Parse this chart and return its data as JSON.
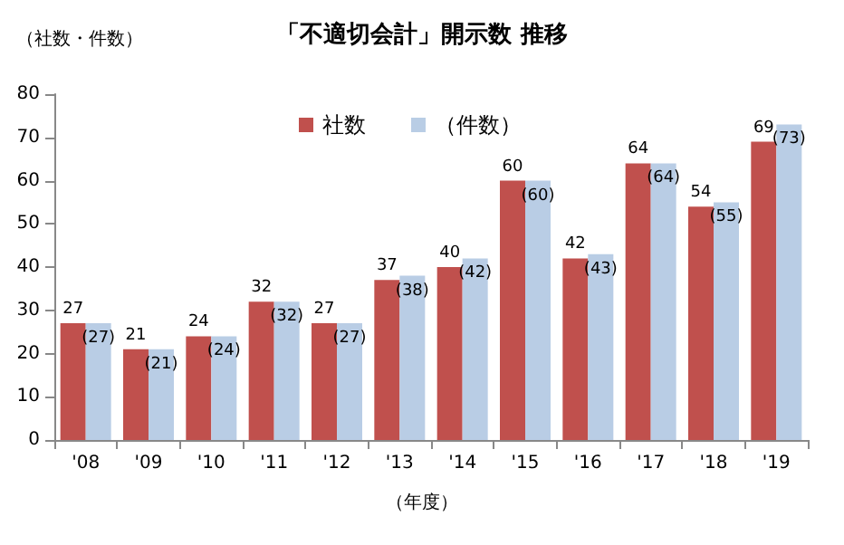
{
  "chart_data": {
    "type": "bar",
    "title": "「不適切会計」開示数 推移",
    "ylabel": "（社数・件数）",
    "xlabel": "（年度）",
    "categories": [
      "'08",
      "'09",
      "'10",
      "'11",
      "'12",
      "'13",
      "'14",
      "'15",
      "'16",
      "'17",
      "'18",
      "'19"
    ],
    "series": [
      {
        "name": "社数",
        "color": "#c0504d",
        "values": [
          27,
          21,
          24,
          32,
          27,
          37,
          40,
          60,
          42,
          64,
          54,
          69
        ],
        "value_labels": [
          "27",
          "21",
          "24",
          "32",
          "27",
          "37",
          "40",
          "60",
          "42",
          "64",
          "54",
          "69"
        ]
      },
      {
        "name": "（件数）",
        "color": "#b9cde5",
        "values": [
          27,
          21,
          24,
          32,
          27,
          38,
          42,
          60,
          43,
          64,
          55,
          73
        ],
        "value_labels": [
          "(27)",
          "(21)",
          "(24)",
          "(32)",
          "(27)",
          "(38)",
          "(42)",
          "(60)",
          "(43)",
          "(64)",
          "(55)",
          "(73)"
        ]
      }
    ],
    "ylim": [
      0,
      80
    ],
    "yticks": [
      0,
      10,
      20,
      30,
      40,
      50,
      60,
      70,
      80
    ],
    "grid": false,
    "legend": "top"
  }
}
